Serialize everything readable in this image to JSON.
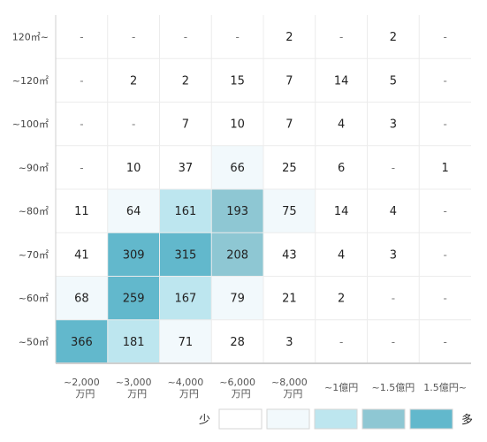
{
  "chart_data": {
    "type": "heatmap",
    "y_categories": [
      "120㎡~",
      "~120㎡",
      "~100㎡",
      "~90㎡",
      "~80㎡",
      "~70㎡",
      "~60㎡",
      "~50㎡"
    ],
    "x_categories": [
      [
        "~2,000",
        "万円"
      ],
      [
        "~3,000",
        "万円"
      ],
      [
        "~4,000",
        "万円"
      ],
      [
        "~6,000",
        "万円"
      ],
      [
        "~8,000",
        "万円"
      ],
      [
        "~1億円"
      ],
      [
        "~1.5億円"
      ],
      [
        "1.5億円~"
      ]
    ],
    "values": [
      [
        null,
        null,
        null,
        null,
        2,
        null,
        2,
        null
      ],
      [
        null,
        2,
        2,
        15,
        7,
        14,
        5,
        null
      ],
      [
        null,
        null,
        7,
        10,
        7,
        4,
        3,
        null
      ],
      [
        null,
        10,
        37,
        66,
        25,
        6,
        null,
        1
      ],
      [
        11,
        64,
        161,
        193,
        75,
        14,
        4,
        null
      ],
      [
        41,
        309,
        315,
        208,
        43,
        4,
        3,
        null
      ],
      [
        68,
        259,
        167,
        79,
        21,
        2,
        null,
        null
      ],
      [
        366,
        181,
        71,
        28,
        3,
        null,
        null,
        null
      ]
    ],
    "empty_symbol": "-",
    "legend": {
      "low_label": "少",
      "high_label": "多",
      "colors": [
        "#ffffff",
        "#f2f9fc",
        "#bde6ef",
        "#8ec7d3",
        "#62b8cc"
      ],
      "thresholds": [
        0,
        50,
        150,
        190,
        250
      ]
    }
  }
}
